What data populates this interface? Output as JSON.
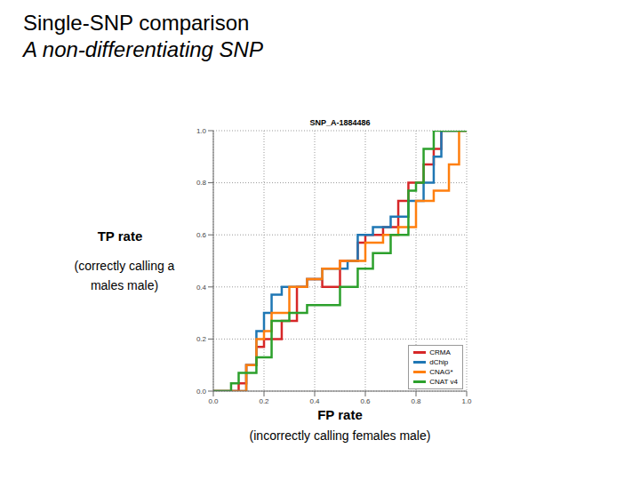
{
  "heading": "Single-SNP comparison",
  "subheading": "A non-differentiating SNP",
  "chart_data": {
    "type": "line",
    "title": "SNP_A-1884486",
    "x_label": "FP rate",
    "x_label_note": "(incorrectly calling females male)",
    "y_label": "TP rate",
    "y_label_note": "(correctly calling a males male)",
    "xlim": [
      0,
      1
    ],
    "ylim": [
      0,
      1
    ],
    "xticks": [
      {
        "value": 0,
        "label": "0.0"
      },
      {
        "value": 0.2,
        "label": "0.2"
      },
      {
        "value": 0.4,
        "label": "0.4"
      },
      {
        "value": 0.6,
        "label": "0.6"
      },
      {
        "value": 0.8,
        "label": "0.8"
      },
      {
        "value": 1,
        "label": "1.0"
      }
    ],
    "yticks": [
      {
        "value": 0,
        "label": "0.0"
      },
      {
        "value": 0.2,
        "label": "0.2"
      },
      {
        "value": 0.4,
        "label": "0.4"
      },
      {
        "value": 0.6,
        "label": "0.6"
      },
      {
        "value": 0.8,
        "label": "0.8"
      },
      {
        "value": 1,
        "label": "1.0"
      }
    ],
    "grid": true,
    "legend": "lower right",
    "line_style": "step",
    "series": [
      {
        "name": "CRMA",
        "color": "#d62728",
        "x": [
          0,
          0.1,
          0.13,
          0.17,
          0.2,
          0.27,
          0.33,
          0.37,
          0.43,
          0.5,
          0.57,
          0.6,
          0.67,
          0.73,
          0.77,
          0.83,
          0.87,
          0.9,
          1
        ],
        "values": [
          0,
          0.03,
          0.1,
          0.17,
          0.2,
          0.27,
          0.4,
          0.43,
          0.4,
          0.5,
          0.57,
          0.6,
          0.63,
          0.73,
          0.8,
          0.87,
          0.93,
          1,
          1
        ]
      },
      {
        "name": "dChip",
        "color": "#1f77b4",
        "x": [
          0,
          0.13,
          0.17,
          0.2,
          0.23,
          0.27,
          0.37,
          0.43,
          0.53,
          0.57,
          0.63,
          0.7,
          0.77,
          0.83,
          0.87,
          0.9,
          1
        ],
        "values": [
          0,
          0.1,
          0.23,
          0.3,
          0.37,
          0.4,
          0.43,
          0.47,
          0.5,
          0.6,
          0.63,
          0.67,
          0.73,
          0.8,
          0.9,
          1,
          1
        ]
      },
      {
        "name": "CNAG*",
        "color": "#ff7f0e",
        "x": [
          0,
          0.13,
          0.17,
          0.2,
          0.23,
          0.3,
          0.37,
          0.43,
          0.5,
          0.6,
          0.67,
          0.73,
          0.8,
          0.87,
          0.93,
          0.97,
          1
        ],
        "values": [
          0,
          0.1,
          0.2,
          0.23,
          0.3,
          0.4,
          0.43,
          0.47,
          0.5,
          0.57,
          0.6,
          0.63,
          0.73,
          0.77,
          0.87,
          1,
          1
        ]
      },
      {
        "name": "CNAT v4",
        "color": "#2ca02c",
        "x": [
          0,
          0.07,
          0.1,
          0.17,
          0.23,
          0.3,
          0.37,
          0.5,
          0.57,
          0.63,
          0.7,
          0.77,
          0.8,
          0.83,
          0.87,
          1
        ],
        "values": [
          0,
          0.03,
          0.07,
          0.13,
          0.27,
          0.3,
          0.33,
          0.4,
          0.47,
          0.53,
          0.6,
          0.77,
          0.8,
          0.93,
          1,
          1
        ]
      }
    ]
  }
}
